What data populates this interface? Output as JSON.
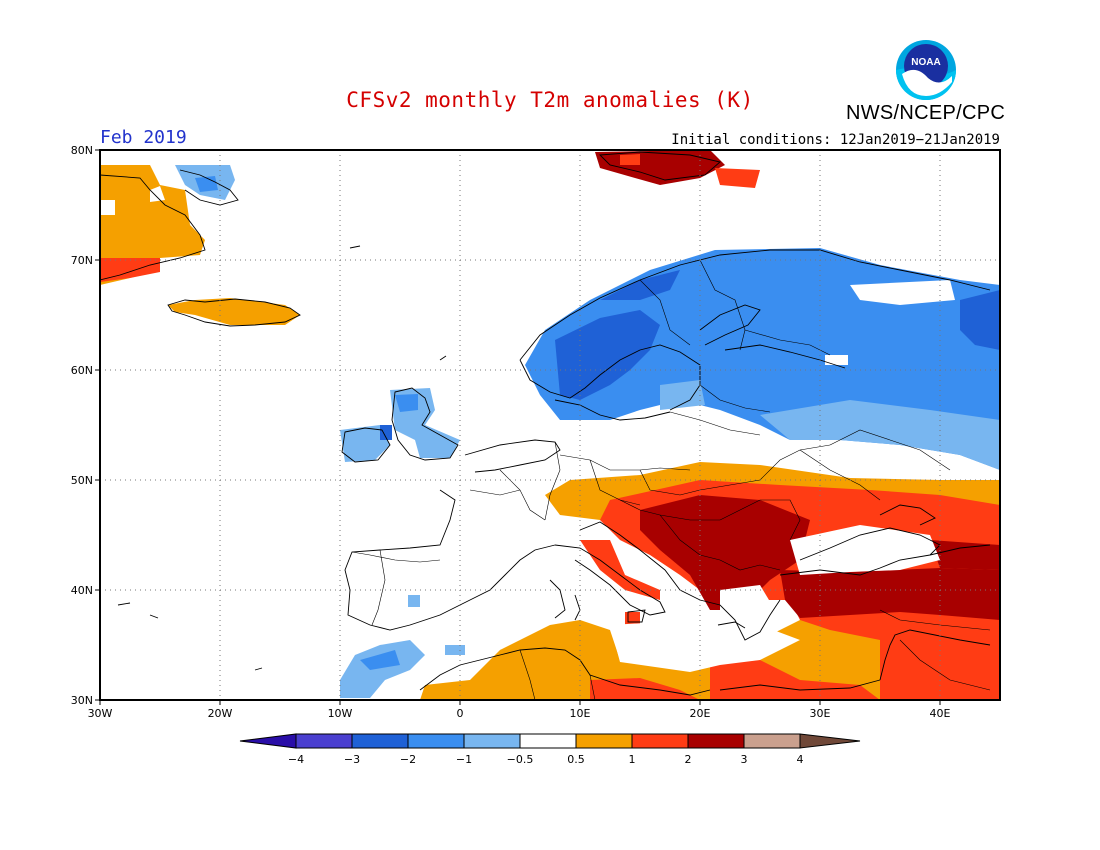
{
  "title": "CFSv2 monthly T2m anomalies (K)",
  "agency": "NWS/NCEP/CPC",
  "logo_text": "NOAA",
  "forecast_month": "Feb 2019",
  "initial_conditions": "Initial conditions: 12Jan2019−21Jan2019",
  "map": {
    "lat_labels": [
      "80N",
      "70N",
      "60N",
      "50N",
      "40N",
      "30N"
    ],
    "lon_labels": [
      "30W",
      "20W",
      "10W",
      "0",
      "10E",
      "20E",
      "30E",
      "40E"
    ]
  },
  "colorbar": {
    "colors": [
      "#2a0ea8",
      "#4a3fcf",
      "#1f61d6",
      "#3a8ef0",
      "#78b6f0",
      "#ffffff",
      "#f5a000",
      "#ff3c14",
      "#a80000",
      "#caa08e",
      "#704838"
    ],
    "tick_labels": [
      "−4",
      "−3",
      "−2",
      "−1",
      "−0.5",
      "0.5",
      "1",
      "2",
      "3",
      "4"
    ]
  },
  "colors": {
    "title": "#d40000",
    "month": "#2233cc",
    "anom_minus_3": "#1f61d6",
    "anom_minus_2": "#3a8ef0",
    "anom_minus_1": "#78b6f0",
    "anom_plus_1": "#f5a000",
    "anom_plus_2": "#ff3c14",
    "anom_plus_3": "#a80000"
  }
}
